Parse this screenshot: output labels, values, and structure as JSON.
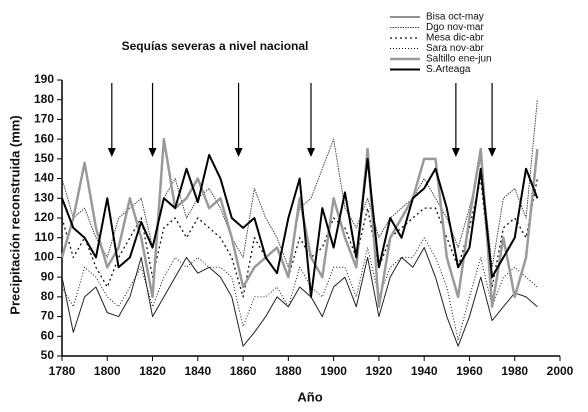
{
  "chart_data": {
    "type": "line",
    "title": "Sequías severas a nivel nacional",
    "x_label": "Año",
    "y_label": "Precipitación reconstruida (mm)",
    "x": [
      1780,
      1785,
      1790,
      1795,
      1800,
      1805,
      1810,
      1815,
      1820,
      1825,
      1830,
      1835,
      1840,
      1845,
      1850,
      1855,
      1860,
      1865,
      1870,
      1875,
      1880,
      1885,
      1890,
      1895,
      1900,
      1905,
      1910,
      1915,
      1920,
      1925,
      1930,
      1935,
      1940,
      1945,
      1950,
      1955,
      1960,
      1965,
      1970,
      1975,
      1980,
      1985,
      1990
    ],
    "series": [
      {
        "name": "Bisa oct-may",
        "color": "#222222",
        "values": [
          90,
          62,
          80,
          85,
          72,
          70,
          80,
          100,
          70,
          80,
          90,
          100,
          92,
          95,
          90,
          80,
          55,
          62,
          70,
          80,
          75,
          85,
          80,
          70,
          85,
          90,
          75,
          100,
          70,
          90,
          100,
          95,
          105,
          90,
          70,
          55,
          70,
          90,
          68,
          75,
          82,
          80,
          75
        ]
      },
      {
        "name": "Dgo nov-mar",
        "color": "#444444",
        "values": [
          140,
          120,
          125,
          110,
          100,
          120,
          125,
          130,
          105,
          130,
          140,
          120,
          130,
          135,
          125,
          110,
          100,
          135,
          120,
          110,
          95,
          125,
          130,
          145,
          160,
          125,
          115,
          130,
          110,
          120,
          125,
          130,
          140,
          130,
          120,
          105,
          125,
          150,
          95,
          130,
          135,
          120,
          180
        ]
      },
      {
        "name": "Mesa dic-abr",
        "color": "#111111",
        "values": [
          120,
          100,
          110,
          95,
          85,
          100,
          110,
          120,
          90,
          115,
          120,
          110,
          120,
          115,
          110,
          100,
          80,
          110,
          100,
          105,
          90,
          110,
          100,
          105,
          120,
          115,
          100,
          125,
          95,
          110,
          115,
          120,
          125,
          125,
          110,
          95,
          115,
          140,
          85,
          115,
          120,
          110,
          140
        ]
      },
      {
        "name": "Sara nov-abr",
        "color": "#111111",
        "values": [
          85,
          75,
          95,
          90,
          80,
          75,
          85,
          95,
          75,
          90,
          100,
          95,
          100,
          95,
          95,
          90,
          65,
          80,
          80,
          85,
          75,
          95,
          85,
          80,
          95,
          95,
          80,
          105,
          80,
          95,
          100,
          100,
          110,
          100,
          85,
          58,
          80,
          100,
          75,
          90,
          95,
          90,
          85
        ]
      },
      {
        "name": "Saltillo ene-jun",
        "color": "#9a9a9a",
        "values": [
          100,
          120,
          148,
          115,
          95,
          105,
          130,
          110,
          80,
          160,
          125,
          130,
          140,
          125,
          130,
          110,
          85,
          95,
          100,
          105,
          90,
          130,
          100,
          90,
          130,
          110,
          95,
          155,
          75,
          110,
          120,
          130,
          150,
          150,
          100,
          80,
          120,
          155,
          75,
          110,
          80,
          100,
          155
        ]
      },
      {
        "name": "S.Arteaga",
        "color": "#000000",
        "values": [
          130,
          115,
          110,
          100,
          130,
          95,
          100,
          118,
          105,
          130,
          125,
          145,
          128,
          152,
          140,
          120,
          115,
          120,
          100,
          92,
          120,
          140,
          80,
          125,
          105,
          133,
          100,
          150,
          95,
          120,
          110,
          130,
          135,
          145,
          125,
          95,
          105,
          145,
          90,
          100,
          110,
          145,
          130
        ]
      }
    ],
    "arrows": [
      1802,
      1820,
      1858,
      1890,
      1954,
      1970
    ],
    "xlim": [
      1780,
      2000
    ],
    "xticks": [
      1780,
      1800,
      1820,
      1840,
      1860,
      1880,
      1900,
      1920,
      1940,
      1960,
      1980,
      2000
    ],
    "ylim": [
      50,
      190
    ],
    "yticks": [
      50,
      60,
      70,
      80,
      90,
      100,
      110,
      120,
      130,
      140,
      150,
      160,
      170,
      180,
      190
    ]
  }
}
